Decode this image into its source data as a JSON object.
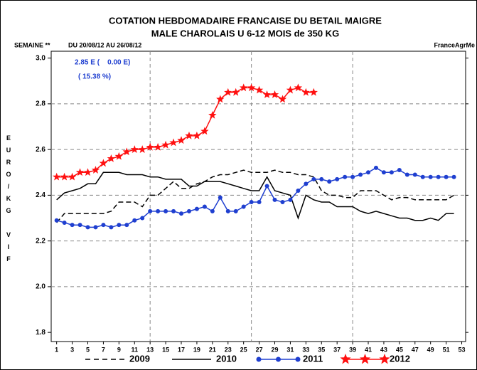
{
  "chart_data": {
    "type": "line",
    "title": "COTATION HEBDOMADAIRE FRANCAISE DU BETAIL MAIGRE",
    "subtitle": "MALE CHAROLAIS U 6-12 MOIS de 350 KG",
    "week_label": "SEMAINE **",
    "period": "DU  20/08/12  AU  26/08/12",
    "source": "FranceAgrMe",
    "annotations": [
      "2.85 E (    0.00 E)",
      "( 15.38 %)"
    ],
    "ylabel": "EURO/KG VIF",
    "x": [
      1,
      2,
      3,
      4,
      5,
      6,
      7,
      8,
      9,
      10,
      11,
      12,
      13,
      14,
      15,
      16,
      17,
      18,
      19,
      20,
      21,
      22,
      23,
      24,
      25,
      26,
      27,
      28,
      29,
      30,
      31,
      32,
      33,
      34,
      35,
      36,
      37,
      38,
      39,
      40,
      41,
      42,
      43,
      44,
      45,
      46,
      47,
      48,
      49,
      50,
      51,
      52
    ],
    "xlim": [
      0.3,
      53.5
    ],
    "xticks": [
      1,
      3,
      5,
      7,
      9,
      11,
      13,
      15,
      17,
      19,
      21,
      23,
      25,
      27,
      29,
      31,
      33,
      35,
      37,
      39,
      41,
      43,
      45,
      47,
      49,
      51,
      53
    ],
    "xgrid": [
      13,
      26,
      39
    ],
    "ylim": [
      1.76,
      3.03
    ],
    "yticks": [
      {
        "value": 1.8,
        "label": "1.8"
      },
      {
        "value": 2,
        "label": "2.0"
      },
      2.2,
      2.4,
      2.6,
      2.8,
      {
        "value": 3,
        "label": "3.0"
      }
    ],
    "ygrid": [
      2,
      2.2,
      2.4,
      2.6,
      2.8
    ],
    "series": [
      {
        "name": "2009",
        "color": "#000000",
        "style": "dashed",
        "values": [
          2.28,
          2.32,
          2.32,
          2.32,
          2.32,
          2.32,
          2.32,
          2.33,
          2.37,
          2.37,
          2.37,
          2.35,
          2.4,
          2.4,
          2.43,
          2.46,
          2.43,
          2.43,
          2.45,
          2.46,
          2.48,
          2.49,
          2.49,
          2.5,
          2.51,
          2.5,
          2.5,
          2.5,
          2.51,
          2.5,
          2.5,
          2.49,
          2.49,
          2.48,
          2.42,
          2.4,
          2.4,
          2.39,
          2.39,
          2.42,
          2.42,
          2.42,
          2.4,
          2.38,
          2.39,
          2.39,
          2.38,
          2.38,
          2.38,
          2.38,
          2.38,
          2.4
        ]
      },
      {
        "name": "2010",
        "color": "#000000",
        "style": "solid",
        "values": [
          2.38,
          2.41,
          2.42,
          2.43,
          2.45,
          2.45,
          2.5,
          2.5,
          2.5,
          2.49,
          2.49,
          2.49,
          2.48,
          2.48,
          2.47,
          2.47,
          2.47,
          2.44,
          2.44,
          2.46,
          2.46,
          2.46,
          2.45,
          2.44,
          2.43,
          2.42,
          2.42,
          2.48,
          2.42,
          2.41,
          2.4,
          2.3,
          2.4,
          2.38,
          2.37,
          2.37,
          2.35,
          2.35,
          2.35,
          2.33,
          2.32,
          2.33,
          2.32,
          2.31,
          2.3,
          2.3,
          2.29,
          2.29,
          2.3,
          2.29,
          2.32,
          2.32
        ]
      },
      {
        "name": "2011",
        "color": "#1f3fd0",
        "style": "dot",
        "values": [
          2.29,
          2.28,
          2.27,
          2.27,
          2.26,
          2.26,
          2.27,
          2.26,
          2.27,
          2.27,
          2.29,
          2.3,
          2.33,
          2.33,
          2.33,
          2.33,
          2.32,
          2.33,
          2.34,
          2.35,
          2.33,
          2.39,
          2.33,
          2.33,
          2.35,
          2.37,
          2.37,
          2.44,
          2.38,
          2.37,
          2.38,
          2.42,
          2.45,
          2.47,
          2.47,
          2.46,
          2.47,
          2.48,
          2.48,
          2.49,
          2.5,
          2.52,
          2.5,
          2.5,
          2.51,
          2.49,
          2.49,
          2.48,
          2.48,
          2.48,
          2.48,
          2.48
        ]
      },
      {
        "name": "2012",
        "color": "#ff1010",
        "style": "star",
        "values": [
          2.48,
          2.48,
          2.48,
          2.5,
          2.5,
          2.51,
          2.54,
          2.56,
          2.57,
          2.59,
          2.6,
          2.6,
          2.61,
          2.61,
          2.62,
          2.63,
          2.64,
          2.66,
          2.66,
          2.68,
          2.75,
          2.82,
          2.85,
          2.85,
          2.87,
          2.87,
          2.86,
          2.84,
          2.84,
          2.82,
          2.86,
          2.87,
          2.85,
          2.85,
          null,
          null,
          null,
          null,
          null,
          null,
          null,
          null,
          null,
          null,
          null,
          null,
          null,
          null,
          null,
          null,
          null,
          null
        ]
      }
    ]
  }
}
